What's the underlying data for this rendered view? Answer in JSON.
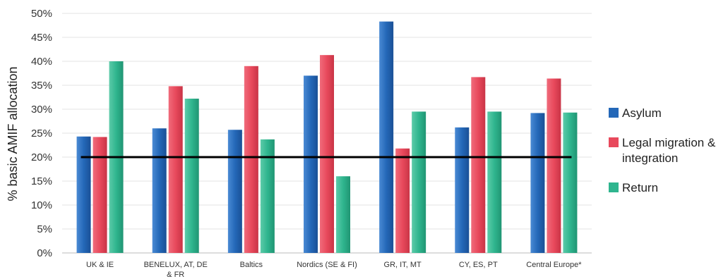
{
  "chart_data": {
    "type": "bar",
    "ylabel": "% basic AMIF allocation",
    "xlabel": "",
    "ylim": [
      0,
      50
    ],
    "yticks": [
      "0%",
      "5%",
      "10%",
      "15%",
      "20%",
      "25%",
      "30%",
      "35%",
      "40%",
      "45%",
      "50%"
    ],
    "categories": [
      "UK & IE",
      "BENELUX, AT, DE & FR",
      "Baltics",
      "Nordics (SE & FI)",
      "GR, IT, MT",
      "CY, ES, PT",
      "Central Europe*"
    ],
    "series": [
      {
        "name": "Asylum",
        "color": "#2468b8",
        "values": [
          24.3,
          26.0,
          25.7,
          37.0,
          48.3,
          26.2,
          29.2
        ]
      },
      {
        "name": "Legal migration & integration",
        "color": "#e8495c",
        "values": [
          24.2,
          34.8,
          39.0,
          41.3,
          21.8,
          36.7,
          36.4
        ]
      },
      {
        "name": "Return",
        "color": "#2fb58e",
        "values": [
          40.0,
          32.2,
          23.7,
          16.0,
          29.5,
          29.5,
          29.3
        ]
      }
    ],
    "reference_line": {
      "value": 20,
      "color": "#000000"
    },
    "grid": true,
    "legend_position": "right"
  }
}
